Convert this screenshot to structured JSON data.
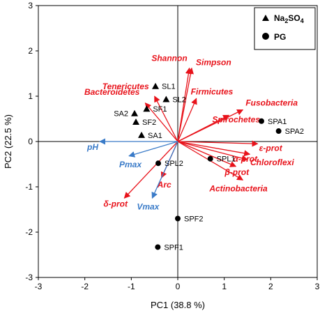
{
  "chart_data": {
    "type": "scatter",
    "xlabel": "PC1 (38.8 %)",
    "ylabel": "PC2 (22.5 %)",
    "xlim": [
      -3,
      3
    ],
    "ylim": [
      -3,
      3
    ],
    "x_ticks": [
      "-3",
      "-2",
      "-1",
      "0",
      "1",
      "2",
      "3"
    ],
    "y_ticks": [
      "-3",
      "-2",
      "-1",
      "0",
      "1",
      "2",
      "3"
    ],
    "legend": {
      "placement": "top-right",
      "entries": [
        {
          "label": "Na2SO4",
          "marker": "triangle"
        },
        {
          "label": "PG",
          "marker": "circle"
        }
      ]
    },
    "series": [
      {
        "name": "Na2SO4",
        "marker": "triangle",
        "points": [
          {
            "label": "SL1",
            "x": -0.48,
            "y": 1.22
          },
          {
            "label": "SL2",
            "x": -0.25,
            "y": 0.93
          },
          {
            "label": "SF1",
            "x": -0.67,
            "y": 0.72
          },
          {
            "label": "SA2",
            "x": -0.93,
            "y": 0.62
          },
          {
            "label": "SF2",
            "x": -0.9,
            "y": 0.43
          },
          {
            "label": "SA1",
            "x": -0.78,
            "y": 0.14
          }
        ]
      },
      {
        "name": "PG",
        "marker": "circle",
        "points": [
          {
            "label": "SPA1",
            "x": 1.8,
            "y": 0.45
          },
          {
            "label": "SPA2",
            "x": 2.17,
            "y": 0.23
          },
          {
            "label": "SPL1",
            "x": 0.7,
            "y": -0.38
          },
          {
            "label": "SPL2",
            "x": -0.42,
            "y": -0.48
          },
          {
            "label": "SPF2",
            "x": 0.0,
            "y": -1.7
          },
          {
            "label": "SPF1",
            "x": -0.43,
            "y": -2.33
          }
        ]
      }
    ],
    "vectors": [
      {
        "label": "Shannon",
        "x": 0.25,
        "y": 1.62,
        "group": "taxa"
      },
      {
        "label": "Simpson",
        "x": 0.3,
        "y": 1.62,
        "group": "taxa"
      },
      {
        "label": "Tenericutes",
        "x": -0.5,
        "y": 1.0,
        "group": "taxa"
      },
      {
        "label": "Bacteroidetes",
        "x": -0.7,
        "y": 0.85,
        "group": "taxa"
      },
      {
        "label": "Firmicutes",
        "x": 0.4,
        "y": 0.95,
        "group": "taxa"
      },
      {
        "label": "Fusobacteria",
        "x": 1.4,
        "y": 0.7,
        "group": "taxa"
      },
      {
        "label": "Spirochetes",
        "x": 1.1,
        "y": 0.58,
        "group": "taxa"
      },
      {
        "label": "ε-prot",
        "x": 1.72,
        "y": -0.05,
        "group": "taxa"
      },
      {
        "label": "α-prot",
        "x": 1.55,
        "y": -0.28,
        "group": "taxa"
      },
      {
        "label": "Chloroflexi",
        "x": 1.5,
        "y": -0.4,
        "group": "taxa"
      },
      {
        "label": "β-prot",
        "x": 1.25,
        "y": -0.55,
        "group": "taxa"
      },
      {
        "label": "Actinobacteria",
        "x": 1.4,
        "y": -0.85,
        "group": "taxa"
      },
      {
        "label": "Arc",
        "x": -0.35,
        "y": -0.8,
        "group": "taxa"
      },
      {
        "label": "δ-prot",
        "x": -1.15,
        "y": -1.25,
        "group": "taxa"
      },
      {
        "label": "pH",
        "x": -1.68,
        "y": 0.0,
        "group": "environment"
      },
      {
        "label": "Pmax",
        "x": -1.05,
        "y": -0.32,
        "group": "environment"
      },
      {
        "label": "Vmax",
        "x": -0.55,
        "y": -1.25,
        "group": "environment"
      }
    ],
    "colors": {
      "taxa": "#e8131b",
      "environment": "#3a7bc8",
      "points": "#000000"
    }
  }
}
